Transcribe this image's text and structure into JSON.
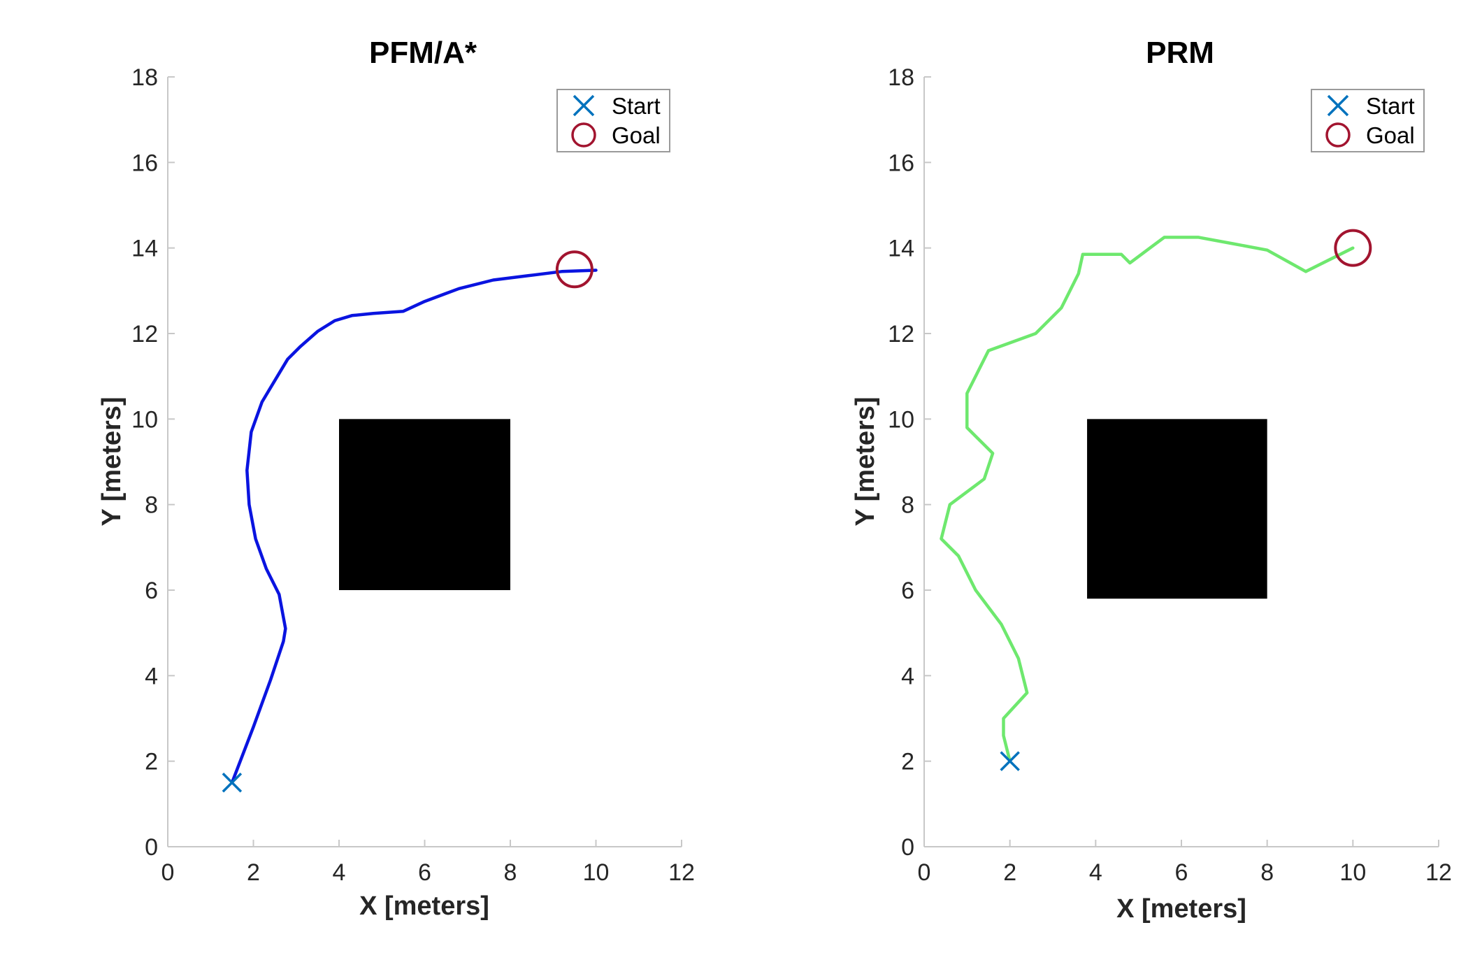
{
  "chart_data": [
    {
      "type": "line",
      "title": "PFM/A*",
      "xlabel": "X [meters]",
      "ylabel": "Y [meters]",
      "xlim": [
        0,
        12
      ],
      "ylim": [
        0,
        18
      ],
      "xticks": [
        0,
        2,
        4,
        6,
        8,
        10,
        12
      ],
      "yticks": [
        0,
        2,
        4,
        6,
        8,
        10,
        12,
        14,
        16,
        18
      ],
      "grid": false,
      "legend_position": "top-right",
      "legend": [
        {
          "label": "Start",
          "marker": "x",
          "color": "#0072bd"
        },
        {
          "label": "Goal",
          "marker": "o",
          "color": "#a2142f"
        }
      ],
      "obstacle": {
        "x": [
          4,
          8
        ],
        "y": [
          6,
          10
        ],
        "color": "#000000"
      },
      "start": {
        "x": 1.5,
        "y": 1.5
      },
      "goal": {
        "x": 9.5,
        "y": 13.5
      },
      "path": {
        "color": "#0a14e0",
        "x": [
          1.5,
          2.0,
          2.4,
          2.7,
          2.75,
          2.6,
          2.3,
          2.05,
          1.9,
          1.85,
          1.95,
          2.2,
          2.5,
          2.8,
          3.1,
          3.5,
          3.9,
          4.3,
          4.8,
          5.5,
          6.0,
          6.8,
          7.6,
          8.4,
          9.2,
          10.0
        ],
        "y": [
          1.5,
          2.8,
          3.9,
          4.8,
          5.1,
          5.9,
          6.5,
          7.2,
          8.0,
          8.8,
          9.7,
          10.4,
          10.9,
          11.4,
          11.7,
          12.05,
          12.3,
          12.42,
          12.47,
          12.52,
          12.75,
          13.05,
          13.25,
          13.35,
          13.45,
          13.48
        ]
      }
    },
    {
      "type": "line",
      "title": "PRM",
      "xlabel": "X [meters]",
      "ylabel": "Y [meters]",
      "xlim": [
        0,
        12
      ],
      "ylim": [
        0,
        18
      ],
      "xticks": [
        0,
        2,
        4,
        6,
        8,
        10,
        12
      ],
      "yticks": [
        0,
        2,
        4,
        6,
        8,
        10,
        12,
        14,
        16,
        18
      ],
      "grid": false,
      "legend_position": "top-right",
      "legend": [
        {
          "label": "Start",
          "marker": "x",
          "color": "#0072bd"
        },
        {
          "label": "Goal",
          "marker": "o",
          "color": "#a2142f"
        }
      ],
      "obstacle": {
        "x": [
          3.8,
          8
        ],
        "y": [
          5.8,
          10
        ],
        "color": "#000000"
      },
      "start": {
        "x": 2,
        "y": 2
      },
      "goal": {
        "x": 10,
        "y": 14
      },
      "path": {
        "color": "#6ee86e",
        "x": [
          2.0,
          1.85,
          1.85,
          2.4,
          2.2,
          1.8,
          1.2,
          0.8,
          0.4,
          0.6,
          1.4,
          1.6,
          1.0,
          1.0,
          1.5,
          2.6,
          3.2,
          3.6,
          3.7,
          4.6,
          4.8,
          5.6,
          6.4,
          7.2,
          8.0,
          8.9,
          10.0
        ],
        "y": [
          2.0,
          2.6,
          3.0,
          3.6,
          4.4,
          5.2,
          6.0,
          6.8,
          7.2,
          8.0,
          8.6,
          9.2,
          9.8,
          10.6,
          11.6,
          12.0,
          12.6,
          13.4,
          13.85,
          13.85,
          13.65,
          14.25,
          14.25,
          14.1,
          13.95,
          13.45,
          14.0
        ]
      }
    }
  ]
}
